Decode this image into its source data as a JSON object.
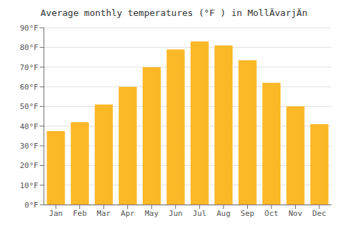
{
  "chart_data": {
    "type": "bar",
    "title": "Average monthly temperatures (°F ) in MollÄvarjÄn",
    "categories": [
      "Jan",
      "Feb",
      "Mar",
      "Apr",
      "May",
      "Jun",
      "Jul",
      "Aug",
      "Sep",
      "Oct",
      "Nov",
      "Dec"
    ],
    "values": [
      37.5,
      42,
      51,
      60,
      70,
      79,
      83,
      81,
      73.5,
      62,
      50,
      41
    ],
    "color": "#FDB827",
    "ylim": [
      0,
      90
    ],
    "yticks": [
      {
        "value": 0,
        "label": "0°F"
      },
      {
        "value": 10,
        "label": "10°F"
      },
      {
        "value": 20,
        "label": "20°F"
      },
      {
        "value": 30,
        "label": "30°F"
      },
      {
        "value": 40,
        "label": "40°F"
      },
      {
        "value": 50,
        "label": "50°F"
      },
      {
        "value": 60,
        "label": "60°F"
      },
      {
        "value": 70,
        "label": "70°F"
      },
      {
        "value": 80,
        "label": "80°F"
      },
      {
        "value": 90,
        "label": "90°F"
      }
    ],
    "grid": true
  }
}
